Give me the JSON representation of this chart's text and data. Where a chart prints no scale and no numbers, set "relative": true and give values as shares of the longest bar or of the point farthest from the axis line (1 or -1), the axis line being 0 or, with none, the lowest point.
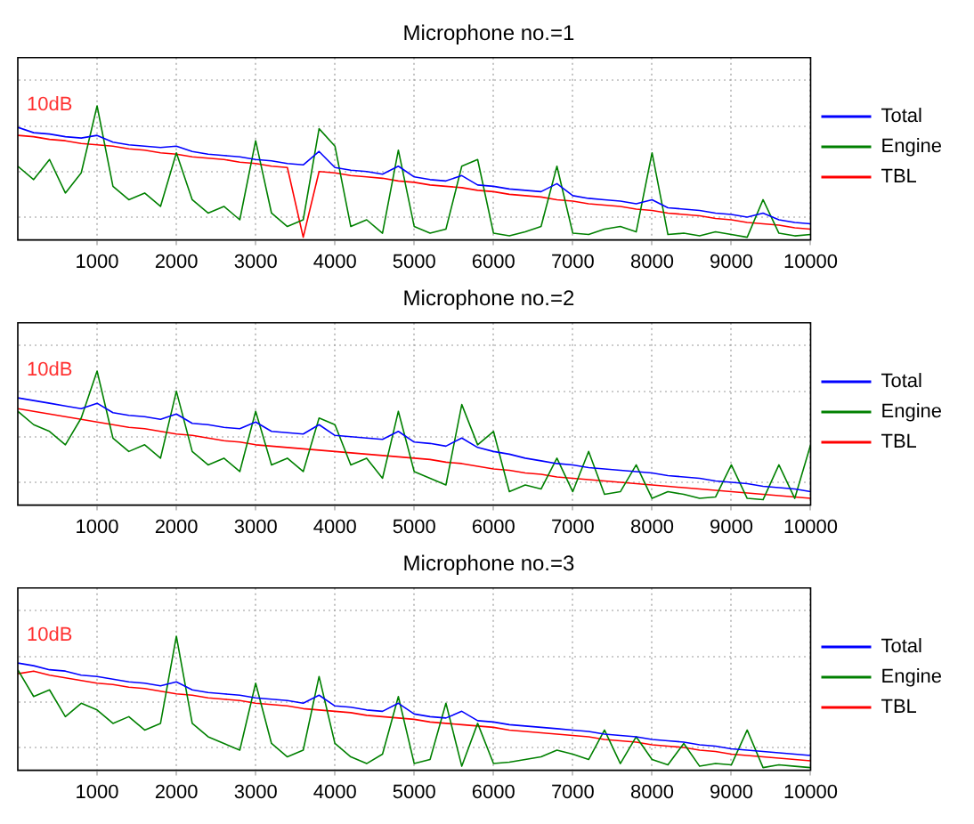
{
  "chart_data": [
    {
      "type": "line",
      "title": "Microphone no.=1",
      "relative": true,
      "grid": true,
      "legend": "right",
      "annotations": [
        "10dB"
      ],
      "xlim": [
        0,
        10000
      ],
      "xticks": [
        1000,
        2000,
        3000,
        4000,
        5000,
        6000,
        7000,
        8000,
        9000,
        10000
      ],
      "x": [
        0,
        200,
        400,
        600,
        800,
        1000,
        1200,
        1400,
        1600,
        1800,
        2000,
        2200,
        2400,
        2600,
        2800,
        3000,
        3200,
        3400,
        3600,
        3800,
        4000,
        4200,
        4400,
        4600,
        4800,
        5000,
        5200,
        5400,
        5600,
        5800,
        6000,
        6200,
        6400,
        6600,
        6800,
        7000,
        7200,
        7400,
        7600,
        7800,
        8000,
        8200,
        8400,
        8600,
        8800,
        9000,
        9200,
        9400,
        9600,
        9800,
        10000
      ],
      "series": [
        {
          "name": "Total",
          "color": "#0000ff",
          "values": [
            0.84,
            0.8,
            0.79,
            0.77,
            0.76,
            0.78,
            0.73,
            0.71,
            0.7,
            0.69,
            0.7,
            0.66,
            0.64,
            0.63,
            0.62,
            0.6,
            0.59,
            0.57,
            0.56,
            0.66,
            0.54,
            0.52,
            0.51,
            0.49,
            0.55,
            0.47,
            0.45,
            0.44,
            0.48,
            0.41,
            0.4,
            0.38,
            0.37,
            0.36,
            0.42,
            0.33,
            0.31,
            0.3,
            0.29,
            0.27,
            0.3,
            0.24,
            0.23,
            0.22,
            0.2,
            0.19,
            0.17,
            0.2,
            0.15,
            0.13,
            0.12
          ]
        },
        {
          "name": "Engine",
          "color": "#008000",
          "values": [
            0.55,
            0.45,
            0.6,
            0.35,
            0.5,
            1.0,
            0.4,
            0.3,
            0.35,
            0.25,
            0.65,
            0.3,
            0.2,
            0.25,
            0.15,
            0.74,
            0.2,
            0.1,
            0.15,
            0.83,
            0.7,
            0.1,
            0.15,
            0.05,
            0.67,
            0.1,
            0.05,
            0.08,
            0.55,
            0.6,
            0.05,
            0.03,
            0.06,
            0.1,
            0.55,
            0.05,
            0.04,
            0.08,
            0.1,
            0.06,
            0.65,
            0.04,
            0.05,
            0.03,
            0.06,
            0.04,
            0.02,
            0.3,
            0.05,
            0.03,
            0.04
          ]
        },
        {
          "name": "TBL",
          "color": "#ff0000",
          "values": [
            0.78,
            0.77,
            0.75,
            0.74,
            0.72,
            0.71,
            0.7,
            0.68,
            0.67,
            0.65,
            0.64,
            0.62,
            0.61,
            0.6,
            0.58,
            0.57,
            0.55,
            0.54,
            0.02,
            0.51,
            0.5,
            0.48,
            0.47,
            0.46,
            0.44,
            0.43,
            0.41,
            0.4,
            0.39,
            0.37,
            0.36,
            0.34,
            0.33,
            0.32,
            0.3,
            0.29,
            0.27,
            0.26,
            0.25,
            0.23,
            0.22,
            0.2,
            0.19,
            0.18,
            0.16,
            0.15,
            0.13,
            0.12,
            0.11,
            0.09,
            0.08
          ]
        }
      ]
    },
    {
      "type": "line",
      "title": "Microphone no.=2",
      "relative": true,
      "grid": true,
      "legend": "right",
      "annotations": [
        "10dB"
      ],
      "xlim": [
        0,
        10000
      ],
      "xticks": [
        1000,
        2000,
        3000,
        4000,
        5000,
        6000,
        7000,
        8000,
        9000,
        10000
      ],
      "x": [
        0,
        200,
        400,
        600,
        800,
        1000,
        1200,
        1400,
        1600,
        1800,
        2000,
        2200,
        2400,
        2600,
        2800,
        3000,
        3200,
        3400,
        3600,
        3800,
        4000,
        4200,
        4400,
        4600,
        4800,
        5000,
        5200,
        5400,
        5600,
        5800,
        6000,
        6200,
        6400,
        6600,
        6800,
        7000,
        7200,
        7400,
        7600,
        7800,
        8000,
        8200,
        8400,
        8600,
        8800,
        9000,
        9200,
        9400,
        9600,
        9800,
        10000
      ],
      "series": [
        {
          "name": "Total",
          "color": "#0000ff",
          "values": [
            0.8,
            0.78,
            0.76,
            0.74,
            0.72,
            0.76,
            0.69,
            0.67,
            0.66,
            0.64,
            0.68,
            0.61,
            0.6,
            0.58,
            0.57,
            0.62,
            0.55,
            0.54,
            0.53,
            0.6,
            0.52,
            0.51,
            0.5,
            0.49,
            0.55,
            0.47,
            0.46,
            0.44,
            0.5,
            0.43,
            0.4,
            0.38,
            0.35,
            0.33,
            0.31,
            0.3,
            0.28,
            0.27,
            0.26,
            0.25,
            0.24,
            0.22,
            0.21,
            0.2,
            0.18,
            0.17,
            0.16,
            0.14,
            0.13,
            0.12,
            0.1
          ]
        },
        {
          "name": "Engine",
          "color": "#008000",
          "values": [
            0.7,
            0.6,
            0.55,
            0.45,
            0.65,
            1.0,
            0.5,
            0.4,
            0.45,
            0.35,
            0.85,
            0.4,
            0.3,
            0.35,
            0.25,
            0.7,
            0.3,
            0.35,
            0.25,
            0.65,
            0.6,
            0.3,
            0.35,
            0.2,
            0.7,
            0.25,
            0.2,
            0.15,
            0.75,
            0.45,
            0.55,
            0.1,
            0.15,
            0.12,
            0.35,
            0.1,
            0.4,
            0.08,
            0.1,
            0.3,
            0.05,
            0.1,
            0.08,
            0.05,
            0.06,
            0.3,
            0.05,
            0.04,
            0.3,
            0.05,
            0.45
          ]
        },
        {
          "name": "TBL",
          "color": "#ff0000",
          "values": [
            0.72,
            0.7,
            0.68,
            0.66,
            0.64,
            0.62,
            0.6,
            0.58,
            0.57,
            0.55,
            0.53,
            0.52,
            0.5,
            0.48,
            0.47,
            0.45,
            0.44,
            0.43,
            0.42,
            0.41,
            0.4,
            0.39,
            0.38,
            0.37,
            0.36,
            0.35,
            0.34,
            0.32,
            0.31,
            0.29,
            0.27,
            0.26,
            0.24,
            0.23,
            0.21,
            0.2,
            0.19,
            0.18,
            0.17,
            0.16,
            0.15,
            0.14,
            0.13,
            0.12,
            0.11,
            0.1,
            0.09,
            0.08,
            0.07,
            0.06,
            0.05
          ]
        }
      ]
    },
    {
      "type": "line",
      "title": "Microphone no.=3",
      "relative": true,
      "grid": true,
      "legend": "right",
      "annotations": [
        "10dB"
      ],
      "xlim": [
        0,
        10000
      ],
      "xticks": [
        1000,
        2000,
        3000,
        4000,
        5000,
        6000,
        7000,
        8000,
        9000,
        10000
      ],
      "x": [
        0,
        200,
        400,
        600,
        800,
        1000,
        1200,
        1400,
        1600,
        1800,
        2000,
        2200,
        2400,
        2600,
        2800,
        3000,
        3200,
        3400,
        3600,
        3800,
        4000,
        4200,
        4400,
        4600,
        4800,
        5000,
        5200,
        5400,
        5600,
        5800,
        6000,
        6200,
        6400,
        6600,
        6800,
        7000,
        7200,
        7400,
        7600,
        7800,
        8000,
        8200,
        8400,
        8600,
        8800,
        9000,
        9200,
        9400,
        9600,
        9800,
        10000
      ],
      "series": [
        {
          "name": "Total",
          "color": "#0000ff",
          "values": [
            0.8,
            0.78,
            0.75,
            0.74,
            0.71,
            0.7,
            0.68,
            0.66,
            0.65,
            0.63,
            0.66,
            0.6,
            0.58,
            0.57,
            0.56,
            0.54,
            0.53,
            0.52,
            0.5,
            0.56,
            0.48,
            0.47,
            0.45,
            0.44,
            0.5,
            0.42,
            0.4,
            0.39,
            0.44,
            0.37,
            0.36,
            0.34,
            0.33,
            0.32,
            0.31,
            0.3,
            0.29,
            0.27,
            0.26,
            0.25,
            0.23,
            0.22,
            0.21,
            0.19,
            0.18,
            0.16,
            0.15,
            0.14,
            0.13,
            0.12,
            0.11
          ]
        },
        {
          "name": "Engine",
          "color": "#008000",
          "values": [
            0.75,
            0.55,
            0.6,
            0.4,
            0.5,
            0.45,
            0.35,
            0.4,
            0.3,
            0.35,
            1.0,
            0.35,
            0.25,
            0.2,
            0.15,
            0.65,
            0.2,
            0.1,
            0.15,
            0.7,
            0.2,
            0.1,
            0.05,
            0.12,
            0.55,
            0.05,
            0.08,
            0.5,
            0.03,
            0.35,
            0.05,
            0.06,
            0.08,
            0.1,
            0.15,
            0.12,
            0.08,
            0.3,
            0.05,
            0.25,
            0.08,
            0.04,
            0.2,
            0.03,
            0.05,
            0.04,
            0.3,
            0.02,
            0.04,
            0.03,
            0.02
          ]
        },
        {
          "name": "TBL",
          "color": "#ff0000",
          "values": [
            0.72,
            0.74,
            0.71,
            0.69,
            0.67,
            0.65,
            0.64,
            0.62,
            0.61,
            0.59,
            0.57,
            0.56,
            0.54,
            0.53,
            0.52,
            0.5,
            0.49,
            0.48,
            0.46,
            0.45,
            0.44,
            0.43,
            0.41,
            0.4,
            0.39,
            0.38,
            0.36,
            0.35,
            0.34,
            0.33,
            0.32,
            0.3,
            0.29,
            0.28,
            0.27,
            0.26,
            0.25,
            0.23,
            0.22,
            0.21,
            0.19,
            0.18,
            0.17,
            0.15,
            0.14,
            0.12,
            0.11,
            0.1,
            0.09,
            0.08,
            0.07
          ]
        }
      ]
    }
  ]
}
